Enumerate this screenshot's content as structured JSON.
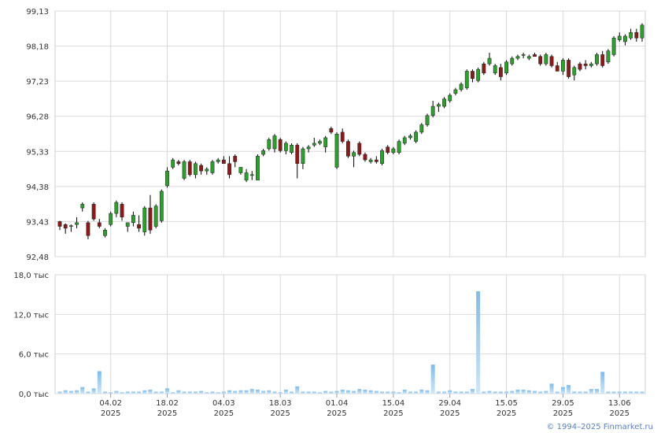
{
  "chart_data": [
    {
      "type": "candlestick",
      "title": "",
      "y_ticks": [
        "92,48",
        "93,43",
        "94,38",
        "95,33",
        "96,28",
        "97,23",
        "98,18",
        "99,13"
      ],
      "y_tick_values": [
        92.48,
        93.43,
        94.38,
        95.33,
        96.28,
        97.23,
        98.18,
        99.13
      ],
      "ylim": [
        92.48,
        99.13
      ],
      "grid": true,
      "candles": [
        [
          93.43,
          93.45,
          93.2,
          93.3
        ],
        [
          93.35,
          93.38,
          93.1,
          93.25
        ],
        [
          93.3,
          93.35,
          93.15,
          93.32
        ],
        [
          93.35,
          93.55,
          93.25,
          93.4
        ],
        [
          93.8,
          93.95,
          93.7,
          93.9
        ],
        [
          93.4,
          93.45,
          92.95,
          93.05
        ],
        [
          93.9,
          93.95,
          93.45,
          93.5
        ],
        [
          93.4,
          93.5,
          93.25,
          93.3
        ],
        [
          93.05,
          93.25,
          93.0,
          93.2
        ],
        [
          93.35,
          93.7,
          93.3,
          93.65
        ],
        [
          93.65,
          94.0,
          93.55,
          93.95
        ],
        [
          93.9,
          93.95,
          93.45,
          93.55
        ],
        [
          93.3,
          93.4,
          93.15,
          93.4
        ],
        [
          93.4,
          93.7,
          93.3,
          93.6
        ],
        [
          93.35,
          93.6,
          93.15,
          93.25
        ],
        [
          93.15,
          93.85,
          93.05,
          93.8
        ],
        [
          93.8,
          94.15,
          93.1,
          93.2
        ],
        [
          93.3,
          93.9,
          93.25,
          93.85
        ],
        [
          93.45,
          94.3,
          93.4,
          94.25
        ],
        [
          94.4,
          94.9,
          94.35,
          94.8
        ],
        [
          94.9,
          95.15,
          94.85,
          95.1
        ],
        [
          95.05,
          95.1,
          94.95,
          95.0
        ],
        [
          94.6,
          95.1,
          94.55,
          95.05
        ],
        [
          95.05,
          95.1,
          94.65,
          94.7
        ],
        [
          94.7,
          95.05,
          94.6,
          95.0
        ],
        [
          94.95,
          95.0,
          94.7,
          94.8
        ],
        [
          94.8,
          94.9,
          94.7,
          94.85
        ],
        [
          94.75,
          95.1,
          94.7,
          95.05
        ],
        [
          95.05,
          95.15,
          95.0,
          95.1
        ],
        [
          95.1,
          95.2,
          95.0,
          95.0
        ],
        [
          95.0,
          95.2,
          94.6,
          94.7
        ],
        [
          95.2,
          95.25,
          94.9,
          95.05
        ],
        [
          94.75,
          94.9,
          94.7,
          94.9
        ],
        [
          94.55,
          94.85,
          94.5,
          94.75
        ],
        [
          94.7,
          94.8,
          94.55,
          94.7
        ],
        [
          94.55,
          95.25,
          94.55,
          95.2
        ],
        [
          95.25,
          95.4,
          95.2,
          95.35
        ],
        [
          95.4,
          95.7,
          95.35,
          95.65
        ],
        [
          95.4,
          95.8,
          95.3,
          95.75
        ],
        [
          95.65,
          95.7,
          95.3,
          95.35
        ],
        [
          95.35,
          95.6,
          95.25,
          95.55
        ],
        [
          95.3,
          95.55,
          95.25,
          95.5
        ],
        [
          95.5,
          95.55,
          94.6,
          95.0
        ],
        [
          95.0,
          95.45,
          94.85,
          95.4
        ],
        [
          95.4,
          95.5,
          95.3,
          95.45
        ],
        [
          95.5,
          95.7,
          95.45,
          95.55
        ],
        [
          95.55,
          95.65,
          95.5,
          95.6
        ],
        [
          95.45,
          95.75,
          95.3,
          95.7
        ],
        [
          95.95,
          96.0,
          95.8,
          95.85
        ],
        [
          94.9,
          95.85,
          94.85,
          95.8
        ],
        [
          95.85,
          95.95,
          95.55,
          95.6
        ],
        [
          95.6,
          95.65,
          95.15,
          95.2
        ],
        [
          95.2,
          95.35,
          94.9,
          95.3
        ],
        [
          95.55,
          95.6,
          95.2,
          95.25
        ],
        [
          95.25,
          95.3,
          95.05,
          95.1
        ],
        [
          95.05,
          95.15,
          95.0,
          95.1
        ],
        [
          95.1,
          95.2,
          95.0,
          95.05
        ],
        [
          95.0,
          95.4,
          94.95,
          95.35
        ],
        [
          95.45,
          95.5,
          95.25,
          95.3
        ],
        [
          95.3,
          95.45,
          95.25,
          95.4
        ],
        [
          95.3,
          95.65,
          95.25,
          95.6
        ],
        [
          95.55,
          95.75,
          95.5,
          95.7
        ],
        [
          95.7,
          95.8,
          95.65,
          95.75
        ],
        [
          95.6,
          95.9,
          95.55,
          95.85
        ],
        [
          95.85,
          96.1,
          95.8,
          96.05
        ],
        [
          96.05,
          96.35,
          96.0,
          96.3
        ],
        [
          96.3,
          96.7,
          96.25,
          96.55
        ],
        [
          96.55,
          96.65,
          96.4,
          96.6
        ],
        [
          96.55,
          96.8,
          96.5,
          96.75
        ],
        [
          96.7,
          96.9,
          96.65,
          96.85
        ],
        [
          96.9,
          97.05,
          96.85,
          97.0
        ],
        [
          97.0,
          97.2,
          96.95,
          97.15
        ],
        [
          97.05,
          97.55,
          97.0,
          97.5
        ],
        [
          97.5,
          97.55,
          97.2,
          97.3
        ],
        [
          97.25,
          97.6,
          97.2,
          97.55
        ],
        [
          97.7,
          97.75,
          97.4,
          97.45
        ],
        [
          97.7,
          98.0,
          97.65,
          97.85
        ],
        [
          97.45,
          97.7,
          97.4,
          97.65
        ],
        [
          97.6,
          97.7,
          97.25,
          97.35
        ],
        [
          97.45,
          97.8,
          97.4,
          97.75
        ],
        [
          97.7,
          97.9,
          97.65,
          97.85
        ],
        [
          97.85,
          97.95,
          97.8,
          97.9
        ],
        [
          97.95,
          98.0,
          97.85,
          97.95
        ],
        [
          97.85,
          97.95,
          97.8,
          97.9
        ],
        [
          97.95,
          98.0,
          97.9,
          97.9
        ],
        [
          97.9,
          97.95,
          97.65,
          97.7
        ],
        [
          97.7,
          98.0,
          97.65,
          97.95
        ],
        [
          97.9,
          97.95,
          97.6,
          97.65
        ],
        [
          97.65,
          97.75,
          97.5,
          97.5
        ],
        [
          97.5,
          97.85,
          97.4,
          97.8
        ],
        [
          97.8,
          97.85,
          97.3,
          97.35
        ],
        [
          97.4,
          97.65,
          97.25,
          97.6
        ],
        [
          97.7,
          97.75,
          97.5,
          97.55
        ],
        [
          97.7,
          97.8,
          97.55,
          97.65
        ],
        [
          97.65,
          97.75,
          97.6,
          97.7
        ],
        [
          97.7,
          98.0,
          97.65,
          97.95
        ],
        [
          97.95,
          98.05,
          97.6,
          97.65
        ],
        [
          97.75,
          98.1,
          97.7,
          98.05
        ],
        [
          97.95,
          98.45,
          97.9,
          98.4
        ],
        [
          98.35,
          98.55,
          98.3,
          98.45
        ],
        [
          98.3,
          98.5,
          98.2,
          98.45
        ],
        [
          98.4,
          98.65,
          98.35,
          98.55
        ],
        [
          98.55,
          98.65,
          98.3,
          98.4
        ],
        [
          98.4,
          98.8,
          98.3,
          98.75
        ]
      ],
      "x_ticks": [
        {
          "day": "04.02",
          "year": "2025"
        },
        {
          "day": "18.02",
          "year": "2025"
        },
        {
          "day": "04.03",
          "year": "2025"
        },
        {
          "day": "18.03",
          "year": "2025"
        },
        {
          "day": "01.04",
          "year": "2025"
        },
        {
          "day": "15.04",
          "year": "2025"
        },
        {
          "day": "29.04",
          "year": "2025"
        },
        {
          "day": "15.05",
          "year": "2025"
        },
        {
          "day": "29.05",
          "year": "2025"
        },
        {
          "day": "13.06",
          "year": "2025"
        }
      ],
      "x_tick_index": [
        9,
        19,
        29,
        39,
        49,
        59,
        69,
        79,
        89,
        99
      ],
      "colors": {
        "up": "#2e9e2e",
        "down": "#8b1a1a",
        "wick": "#000000",
        "grid": "#d9d9d9"
      }
    },
    {
      "type": "bar",
      "title": "",
      "y_ticks": [
        "0,0 тыс",
        "6,0 тыс",
        "12,0 тыс",
        "18,0 тыс"
      ],
      "y_tick_values": [
        0,
        6,
        12,
        18
      ],
      "ylim": [
        0,
        18
      ],
      "unit": "тыс",
      "values": [
        0.3,
        0.5,
        0.4,
        0.5,
        1.0,
        0.3,
        0.8,
        3.4,
        0.3,
        0.2,
        0.4,
        0.2,
        0.3,
        0.3,
        0.3,
        0.5,
        0.6,
        0.3,
        0.3,
        0.8,
        0.2,
        0.5,
        0.3,
        0.3,
        0.3,
        0.4,
        0.2,
        0.3,
        0.2,
        0.3,
        0.5,
        0.4,
        0.5,
        0.5,
        0.7,
        0.6,
        0.4,
        0.5,
        0.3,
        0.2,
        0.6,
        0.3,
        1.1,
        0.3,
        0.3,
        0.3,
        0.2,
        0.4,
        0.3,
        0.4,
        0.6,
        0.5,
        0.4,
        0.7,
        0.6,
        0.5,
        0.4,
        0.3,
        0.3,
        0.3,
        0.2,
        0.6,
        0.3,
        0.3,
        0.6,
        0.5,
        4.4,
        0.3,
        0.3,
        0.5,
        0.3,
        0.3,
        0.3,
        0.7,
        15.5,
        0.3,
        0.4,
        0.3,
        0.3,
        0.3,
        0.4,
        0.6,
        0.6,
        0.5,
        0.4,
        0.3,
        0.4,
        1.5,
        0.3,
        1.0,
        1.3,
        0.3,
        0.3,
        0.3,
        0.7,
        0.7,
        3.3,
        0.3,
        0.3,
        0.3,
        0.3,
        0.3,
        0.3,
        0.3
      ],
      "color": "#9ccbef"
    }
  ],
  "footer": {
    "copyright": "© 1994–2025 Finmarket.ru"
  }
}
